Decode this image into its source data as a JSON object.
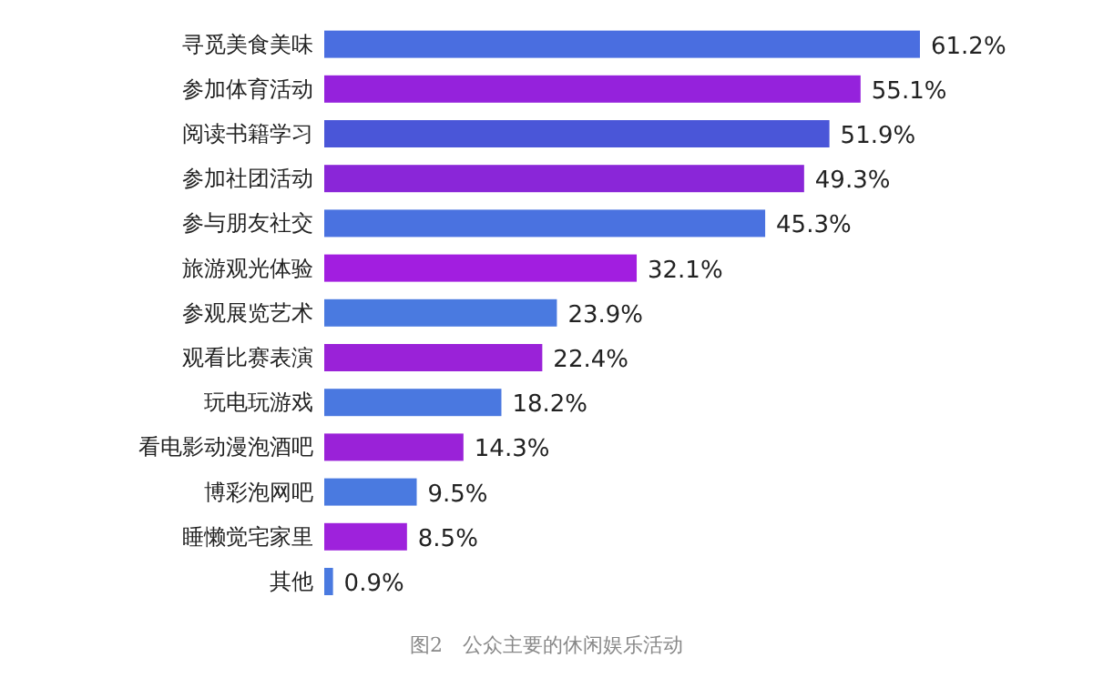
{
  "chart_data": {
    "type": "bar",
    "orientation": "horizontal",
    "value_labels": [
      "61.2%",
      "55.1%",
      "51.9%",
      "49.3%",
      "45.3%",
      "32.1%",
      "23.9%",
      "22.4%",
      "18.2%",
      "14.3%",
      "9.5%",
      "8.5%",
      "0.9%"
    ],
    "categories": [
      "寻觅美食美味",
      "参加体育活动",
      "阅读书籍学习",
      "参加社团活动",
      "参与朋友社交",
      "旅游观光体验",
      "参观展览艺术",
      "观看比赛表演",
      "玩电玩游戏",
      "看电影动漫泡酒吧",
      "博彩泡网吧",
      "睡懒觉宅家里",
      "其他"
    ],
    "values": [
      61.2,
      55.1,
      51.9,
      49.3,
      45.3,
      32.1,
      23.9,
      22.4,
      18.2,
      14.3,
      9.5,
      8.5,
      0.9
    ],
    "colors": [
      "#4a6ee0",
      "#9522dc",
      "#4a56d8",
      "#8a26d8",
      "#4a72e0",
      "#a21ee0",
      "#4a7ae0",
      "#9a22d8",
      "#4a78e0",
      "#9a22d8",
      "#4a7ae0",
      "#9e22dc",
      "#4a7ae0"
    ],
    "annotations": [
      "图2　公众主要的休闲娱乐活动"
    ]
  }
}
